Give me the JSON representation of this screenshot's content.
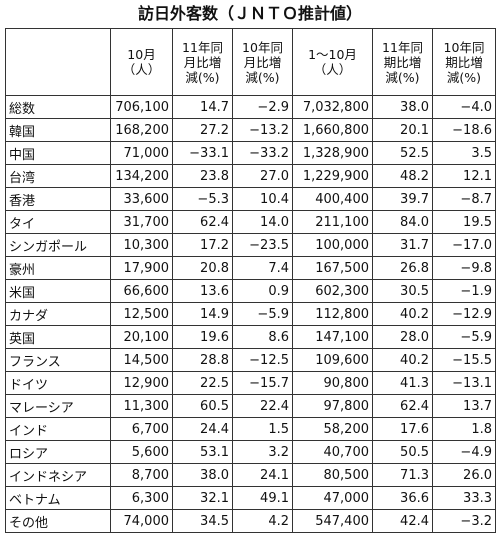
{
  "title": "訪日外客数（ＪＮＴＯ推計値）",
  "table": {
    "header": [
      [],
      [
        "10月",
        "（人）"
      ],
      [
        "11年同",
        "月比増",
        "減(%)"
      ],
      [
        "10年同",
        "月比増",
        "減(%)"
      ],
      [
        "1～10月",
        "（人）"
      ],
      [
        "11年同",
        "期比増",
        "減(%)"
      ],
      [
        "10年同",
        "期比増",
        "減(%)"
      ]
    ],
    "rows": [
      [
        "総数",
        "706,100",
        "14.7",
        "−2.9",
        "7,032,800",
        "38.0",
        "−4.0"
      ],
      [
        "韓国",
        "168,200",
        "27.2",
        "−13.2",
        "1,660,800",
        "20.1",
        "−18.6"
      ],
      [
        "中国",
        "71,000",
        "−33.1",
        "−33.2",
        "1,328,900",
        "52.5",
        "3.5"
      ],
      [
        "台湾",
        "134,200",
        "23.8",
        "27.0",
        "1,229,900",
        "48.2",
        "12.1"
      ],
      [
        "香港",
        "33,600",
        "−5.3",
        "10.4",
        "400,400",
        "39.7",
        "−8.7"
      ],
      [
        "タイ",
        "31,700",
        "62.4",
        "14.0",
        "211,100",
        "84.0",
        "19.5"
      ],
      [
        "シンガポール",
        "10,300",
        "17.2",
        "−23.5",
        "100,000",
        "31.7",
        "−17.0"
      ],
      [
        "豪州",
        "17,900",
        "20.8",
        "7.4",
        "167,500",
        "26.8",
        "−9.8"
      ],
      [
        "米国",
        "66,600",
        "13.6",
        "0.9",
        "602,300",
        "30.5",
        "−1.9"
      ],
      [
        "カナダ",
        "12,500",
        "14.9",
        "−5.9",
        "112,800",
        "40.2",
        "−12.9"
      ],
      [
        "英国",
        "20,100",
        "19.6",
        "8.6",
        "147,100",
        "28.0",
        "−5.9"
      ],
      [
        "フランス",
        "14,500",
        "28.8",
        "−12.5",
        "109,600",
        "40.2",
        "−15.5"
      ],
      [
        "ドイツ",
        "12,900",
        "22.5",
        "−15.7",
        "90,800",
        "41.3",
        "−13.1"
      ],
      [
        "マレーシア",
        "11,300",
        "60.5",
        "22.4",
        "97,800",
        "62.4",
        "13.7"
      ],
      [
        "インド",
        "6,700",
        "24.4",
        "1.5",
        "58,200",
        "17.6",
        "1.8"
      ],
      [
        "ロシア",
        "5,600",
        "53.1",
        "3.2",
        "40,700",
        "50.5",
        "−4.9"
      ],
      [
        "インドネシア",
        "8,700",
        "38.0",
        "24.1",
        "80,500",
        "71.3",
        "26.0"
      ],
      [
        "ベトナム",
        "6,300",
        "32.1",
        "49.1",
        "47,000",
        "36.6",
        "33.3"
      ],
      [
        "その他",
        "74,000",
        "34.5",
        "4.2",
        "547,400",
        "42.4",
        "−3.2"
      ]
    ]
  }
}
